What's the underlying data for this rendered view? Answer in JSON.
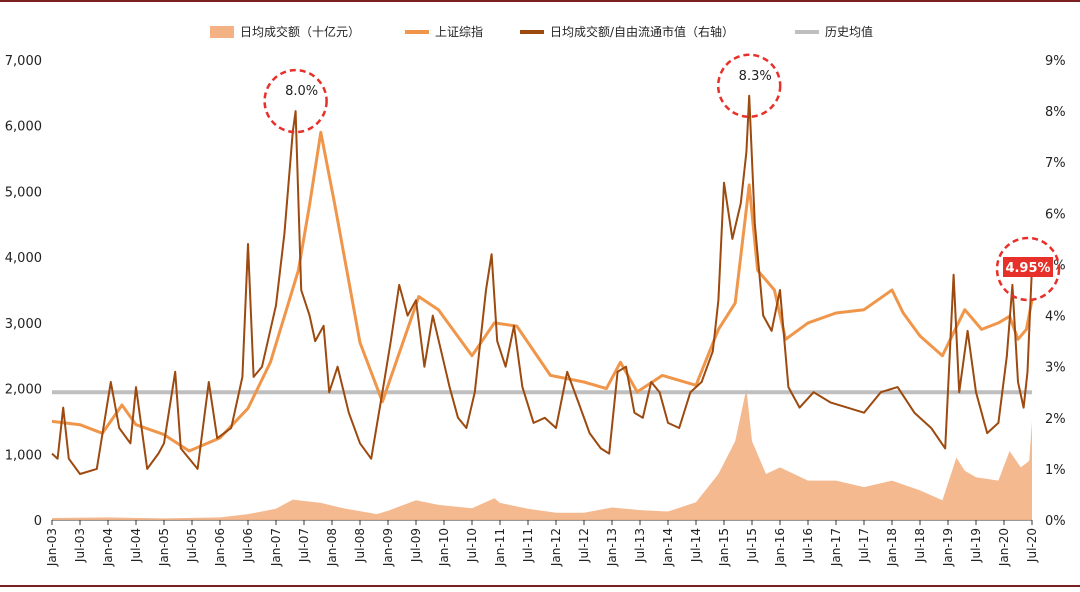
{
  "chart_data": {
    "type": "line",
    "legend": [
      {
        "label": "日均成交额（十亿元）",
        "color": "#f4b183",
        "kind": "area"
      },
      {
        "label": "上证综指",
        "color": "#f0964a",
        "kind": "line"
      },
      {
        "label": "日均成交额/自由流通市值（右轴）",
        "color": "#9c4a0f",
        "kind": "line"
      },
      {
        "label": "历史均值",
        "color": "#bfbfbf",
        "kind": "line"
      }
    ],
    "y_left": {
      "ticks": [
        "0",
        "1,000",
        "2,000",
        "3,000",
        "4,000",
        "5,000",
        "6,000",
        "7,000"
      ],
      "range": [
        0,
        7000
      ]
    },
    "y_right": {
      "ticks": [
        "0%",
        "1%",
        "2%",
        "3%",
        "4%",
        "5%",
        "6%",
        "7%",
        "8%",
        "9%"
      ],
      "range": [
        0,
        9
      ]
    },
    "x": {
      "range": [
        2003.0,
        2020.5
      ],
      "tick_labels": [
        "Jan-03",
        "Jul-03",
        "Jan-04",
        "Jul-04",
        "Jan-05",
        "Jul-05",
        "Jan-06",
        "Jul-06",
        "Jan-07",
        "Jul-07",
        "Jan-08",
        "Jul-08",
        "Jan-09",
        "Jul-09",
        "Jan-10",
        "Jul-10",
        "Jan-11",
        "Jul-11",
        "Jan-12",
        "Jul-12",
        "Jan-13",
        "Jul-13",
        "Jan-14",
        "Jul-14",
        "Jan-15",
        "Jul-15",
        "Jan-16",
        "Jul-16",
        "Jan-17",
        "Jul-17",
        "Jan-18",
        "Jul-18",
        "Jan-19",
        "Jul-19",
        "Jan-20",
        "Jul-20"
      ]
    },
    "historical_mean_pct": 2.5,
    "series": [
      {
        "name": "日均成交额（十亿元）",
        "axis": "left",
        "points": [
          [
            2003.0,
            30
          ],
          [
            2004.0,
            40
          ],
          [
            2005.0,
            25
          ],
          [
            2006.0,
            40
          ],
          [
            2006.5,
            90
          ],
          [
            2007.0,
            170
          ],
          [
            2007.3,
            310
          ],
          [
            2007.8,
            260
          ],
          [
            2008.2,
            180
          ],
          [
            2008.8,
            90
          ],
          [
            2009.0,
            140
          ],
          [
            2009.5,
            300
          ],
          [
            2009.9,
            230
          ],
          [
            2010.5,
            180
          ],
          [
            2010.9,
            330
          ],
          [
            2011.0,
            260
          ],
          [
            2011.5,
            170
          ],
          [
            2012.0,
            110
          ],
          [
            2012.5,
            110
          ],
          [
            2013.0,
            190
          ],
          [
            2013.5,
            150
          ],
          [
            2014.0,
            130
          ],
          [
            2014.5,
            270
          ],
          [
            2014.9,
            700
          ],
          [
            2015.2,
            1200
          ],
          [
            2015.4,
            2000
          ],
          [
            2015.5,
            1200
          ],
          [
            2015.75,
            700
          ],
          [
            2016.0,
            800
          ],
          [
            2016.5,
            600
          ],
          [
            2017.0,
            600
          ],
          [
            2017.5,
            500
          ],
          [
            2018.0,
            600
          ],
          [
            2018.5,
            450
          ],
          [
            2018.9,
            300
          ],
          [
            2019.15,
            950
          ],
          [
            2019.3,
            750
          ],
          [
            2019.5,
            650
          ],
          [
            2019.9,
            600
          ],
          [
            2020.1,
            1050
          ],
          [
            2020.3,
            800
          ],
          [
            2020.45,
            900
          ],
          [
            2020.5,
            1500
          ]
        ]
      },
      {
        "name": "上证综指",
        "axis": "left",
        "points": [
          [
            2003.0,
            1500
          ],
          [
            2003.5,
            1450
          ],
          [
            2003.9,
            1320
          ],
          [
            2004.25,
            1750
          ],
          [
            2004.5,
            1450
          ],
          [
            2005.0,
            1300
          ],
          [
            2005.45,
            1050
          ],
          [
            2006.0,
            1250
          ],
          [
            2006.5,
            1700
          ],
          [
            2006.9,
            2400
          ],
          [
            2007.4,
            3800
          ],
          [
            2007.6,
            4800
          ],
          [
            2007.8,
            5900
          ],
          [
            2008.05,
            4800
          ],
          [
            2008.5,
            2700
          ],
          [
            2008.9,
            1800
          ],
          [
            2009.55,
            3400
          ],
          [
            2009.9,
            3200
          ],
          [
            2010.5,
            2500
          ],
          [
            2010.9,
            3000
          ],
          [
            2011.3,
            2950
          ],
          [
            2011.9,
            2200
          ],
          [
            2012.5,
            2100
          ],
          [
            2012.9,
            2000
          ],
          [
            2013.15,
            2400
          ],
          [
            2013.45,
            1950
          ],
          [
            2013.9,
            2200
          ],
          [
            2014.5,
            2050
          ],
          [
            2014.9,
            2900
          ],
          [
            2015.2,
            3300
          ],
          [
            2015.45,
            5100
          ],
          [
            2015.6,
            3800
          ],
          [
            2015.9,
            3500
          ],
          [
            2016.1,
            2750
          ],
          [
            2016.5,
            3000
          ],
          [
            2017.0,
            3150
          ],
          [
            2017.5,
            3200
          ],
          [
            2018.0,
            3500
          ],
          [
            2018.2,
            3150
          ],
          [
            2018.5,
            2800
          ],
          [
            2018.9,
            2500
          ],
          [
            2019.3,
            3200
          ],
          [
            2019.6,
            2900
          ],
          [
            2019.9,
            3000
          ],
          [
            2020.1,
            3100
          ],
          [
            2020.25,
            2750
          ],
          [
            2020.4,
            2900
          ],
          [
            2020.5,
            3350
          ]
        ]
      },
      {
        "name": "日均成交额/自由流通市值（右轴）",
        "axis": "right",
        "points": [
          [
            2003.0,
            1.3
          ],
          [
            2003.1,
            1.2
          ],
          [
            2003.2,
            2.2
          ],
          [
            2003.3,
            1.2
          ],
          [
            2003.5,
            0.9
          ],
          [
            2003.8,
            1.0
          ],
          [
            2004.05,
            2.7
          ],
          [
            2004.2,
            1.8
          ],
          [
            2004.4,
            1.5
          ],
          [
            2004.5,
            2.6
          ],
          [
            2004.7,
            1.0
          ],
          [
            2004.9,
            1.3
          ],
          [
            2005.0,
            1.5
          ],
          [
            2005.2,
            2.9
          ],
          [
            2005.3,
            1.4
          ],
          [
            2005.6,
            1.0
          ],
          [
            2005.8,
            2.7
          ],
          [
            2005.95,
            1.6
          ],
          [
            2006.2,
            1.8
          ],
          [
            2006.4,
            2.8
          ],
          [
            2006.5,
            5.4
          ],
          [
            2006.6,
            2.8
          ],
          [
            2006.75,
            3.0
          ],
          [
            2007.0,
            4.2
          ],
          [
            2007.15,
            5.6
          ],
          [
            2007.3,
            7.6
          ],
          [
            2007.35,
            8.0
          ],
          [
            2007.45,
            4.5
          ],
          [
            2007.6,
            4.0
          ],
          [
            2007.7,
            3.5
          ],
          [
            2007.85,
            3.8
          ],
          [
            2007.95,
            2.5
          ],
          [
            2008.1,
            3.0
          ],
          [
            2008.3,
            2.1
          ],
          [
            2008.5,
            1.5
          ],
          [
            2008.7,
            1.2
          ],
          [
            2008.9,
            2.5
          ],
          [
            2009.05,
            3.5
          ],
          [
            2009.2,
            4.6
          ],
          [
            2009.35,
            4.0
          ],
          [
            2009.5,
            4.3
          ],
          [
            2009.65,
            3.0
          ],
          [
            2009.8,
            4.0
          ],
          [
            2009.95,
            3.3
          ],
          [
            2010.1,
            2.6
          ],
          [
            2010.25,
            2.0
          ],
          [
            2010.4,
            1.8
          ],
          [
            2010.55,
            2.5
          ],
          [
            2010.75,
            4.5
          ],
          [
            2010.85,
            5.2
          ],
          [
            2010.95,
            3.5
          ],
          [
            2011.1,
            3.0
          ],
          [
            2011.25,
            3.8
          ],
          [
            2011.4,
            2.6
          ],
          [
            2011.6,
            1.9
          ],
          [
            2011.8,
            2.0
          ],
          [
            2012.0,
            1.8
          ],
          [
            2012.2,
            2.9
          ],
          [
            2012.4,
            2.3
          ],
          [
            2012.6,
            1.7
          ],
          [
            2012.8,
            1.4
          ],
          [
            2012.95,
            1.3
          ],
          [
            2013.1,
            2.9
          ],
          [
            2013.25,
            3.0
          ],
          [
            2013.4,
            2.1
          ],
          [
            2013.55,
            2.0
          ],
          [
            2013.7,
            2.7
          ],
          [
            2013.85,
            2.5
          ],
          [
            2014.0,
            1.9
          ],
          [
            2014.2,
            1.8
          ],
          [
            2014.4,
            2.5
          ],
          [
            2014.6,
            2.7
          ],
          [
            2014.8,
            3.3
          ],
          [
            2014.9,
            4.3
          ],
          [
            2015.0,
            6.6
          ],
          [
            2015.15,
            5.5
          ],
          [
            2015.3,
            6.2
          ],
          [
            2015.4,
            7.2
          ],
          [
            2015.45,
            8.3
          ],
          [
            2015.55,
            5.8
          ],
          [
            2015.7,
            4.0
          ],
          [
            2015.85,
            3.7
          ],
          [
            2016.0,
            4.5
          ],
          [
            2016.15,
            2.6
          ],
          [
            2016.35,
            2.2
          ],
          [
            2016.6,
            2.5
          ],
          [
            2016.9,
            2.3
          ],
          [
            2017.2,
            2.2
          ],
          [
            2017.5,
            2.1
          ],
          [
            2017.8,
            2.5
          ],
          [
            2018.1,
            2.6
          ],
          [
            2018.4,
            2.1
          ],
          [
            2018.7,
            1.8
          ],
          [
            2018.95,
            1.4
          ],
          [
            2019.1,
            4.8
          ],
          [
            2019.2,
            2.5
          ],
          [
            2019.35,
            3.7
          ],
          [
            2019.5,
            2.5
          ],
          [
            2019.7,
            1.7
          ],
          [
            2019.9,
            1.9
          ],
          [
            2020.05,
            3.2
          ],
          [
            2020.15,
            4.6
          ],
          [
            2020.25,
            2.7
          ],
          [
            2020.35,
            2.2
          ],
          [
            2020.42,
            2.9
          ],
          [
            2020.47,
            4.2
          ],
          [
            2020.5,
            4.95
          ]
        ]
      }
    ],
    "annotations": [
      {
        "label": "8.0%",
        "x": 2007.35,
        "y_pct": 8.0,
        "highlight": false
      },
      {
        "label": "8.3%",
        "x": 2015.45,
        "y_pct": 8.3,
        "highlight": false
      },
      {
        "label": "4.95%",
        "x": 2020.5,
        "y_pct": 4.95,
        "highlight": true
      }
    ],
    "colors": {
      "area": "#f4b183",
      "index_line": "#f0964a",
      "ratio_line": "#9c4a0f",
      "mean_line": "#bfbfbf",
      "callout": "#e8302a",
      "frame": "#7b1f1f"
    }
  }
}
